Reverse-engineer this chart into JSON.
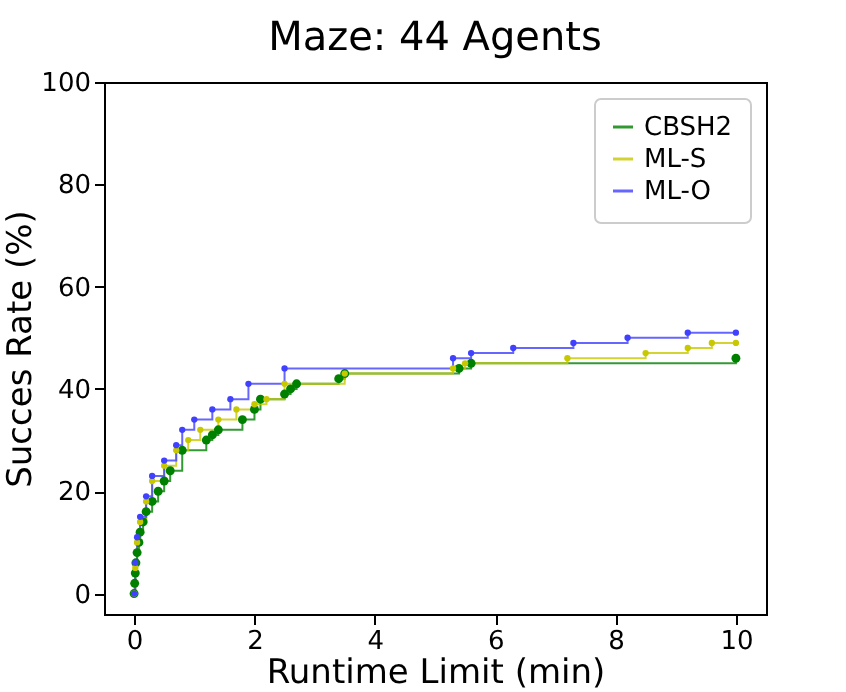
{
  "chart_data": {
    "type": "step",
    "title": "Maze: 44 Agents",
    "xlabel": "Runtime Limit (min)",
    "ylabel": "Succes Rate (%)",
    "xlim": [
      -0.5,
      10.5
    ],
    "xticks": [
      0,
      2,
      4,
      6,
      8,
      10
    ],
    "ylim": [
      -4,
      100
    ],
    "yticks": [
      0,
      20,
      40,
      60,
      80,
      100
    ],
    "grid": false,
    "legend": "top right",
    "marker": "circle",
    "line_style": "solid",
    "series": [
      {
        "name": "CBSH2",
        "color": "#008000",
        "x": [
          0,
          0.01,
          0.02,
          0.03,
          0.05,
          0.08,
          0.1,
          0.15,
          0.2,
          0.3,
          0.4,
          0.5,
          0.6,
          0.8,
          1.2,
          1.3,
          1.4,
          1.8,
          2.0,
          2.1,
          2.5,
          2.6,
          2.7,
          3.4,
          3.5,
          5.4,
          5.6,
          10
        ],
        "values": [
          0,
          2,
          4,
          6,
          8,
          10,
          12,
          14,
          16,
          18,
          20,
          22,
          24,
          28,
          30,
          31,
          32,
          34,
          36,
          38,
          39,
          40,
          41,
          42,
          43,
          44,
          45,
          46
        ]
      },
      {
        "name": "ML-S",
        "color": "#c8c800",
        "x": [
          0,
          0.02,
          0.05,
          0.1,
          0.2,
          0.3,
          0.5,
          0.7,
          0.9,
          1.1,
          1.4,
          1.7,
          2.0,
          2.2,
          2.5,
          3.5,
          5.3,
          5.5,
          7.2,
          8.5,
          9.2,
          9.6,
          10
        ],
        "values": [
          0,
          5,
          10,
          14,
          18,
          22,
          25,
          28,
          30,
          32,
          34,
          36,
          37,
          38,
          41,
          43,
          44,
          45,
          46,
          47,
          48,
          49,
          49
        ]
      },
      {
        "name": "ML-O",
        "color": "#4040ff",
        "x": [
          0,
          0.02,
          0.05,
          0.1,
          0.2,
          0.3,
          0.5,
          0.7,
          0.8,
          1.0,
          1.3,
          1.6,
          1.9,
          2.5,
          5.3,
          5.6,
          6.3,
          7.3,
          8.2,
          9.2,
          10
        ],
        "values": [
          0,
          6,
          11,
          15,
          19,
          23,
          26,
          29,
          32,
          34,
          36,
          38,
          41,
          44,
          46,
          47,
          48,
          49,
          50,
          51,
          51
        ]
      }
    ]
  }
}
